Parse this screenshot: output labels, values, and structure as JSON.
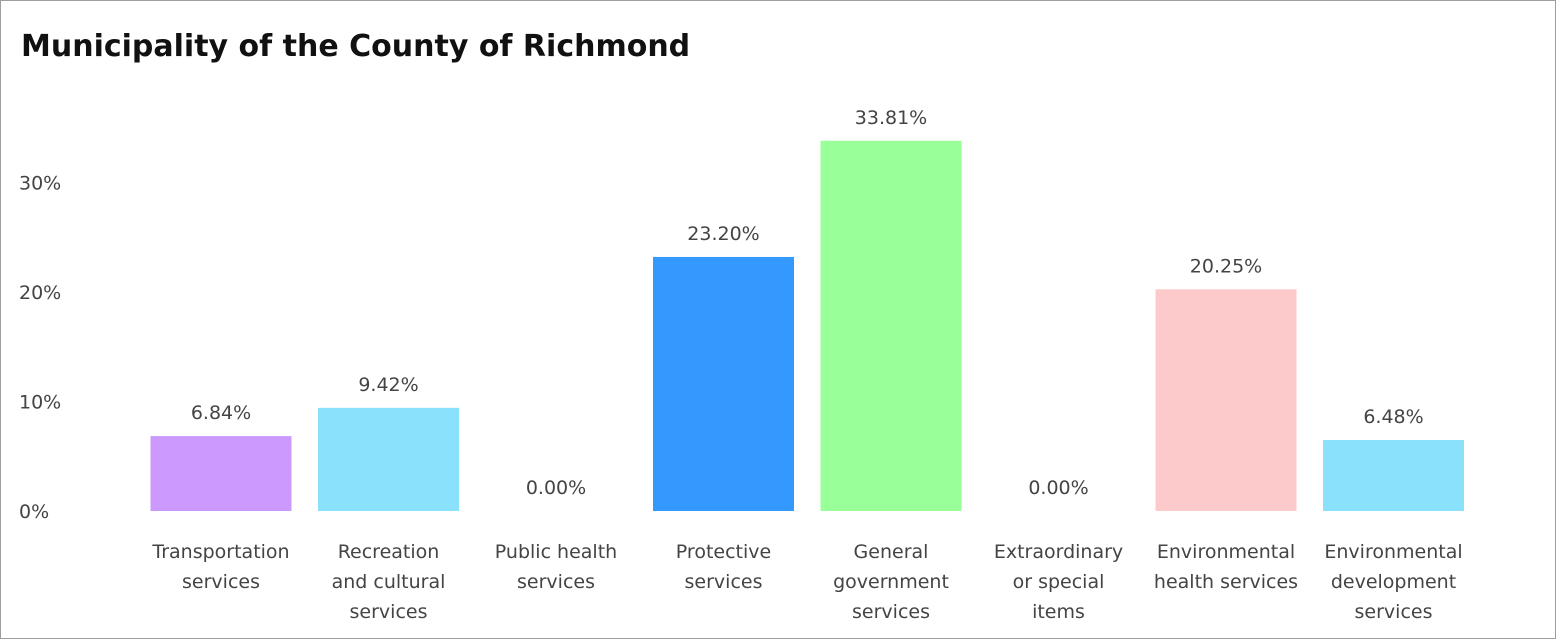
{
  "chart_data": {
    "type": "bar",
    "title": "Municipality of the County of Richmond",
    "categories": [
      [
        "Transportation",
        "services"
      ],
      [
        "Recreation",
        "and cultural",
        "services"
      ],
      [
        "Public health",
        "services"
      ],
      [
        "Protective",
        "services"
      ],
      [
        "General",
        "government",
        "services"
      ],
      [
        "Extraordinary",
        "or special",
        "items"
      ],
      [
        "Environmental",
        "health services"
      ],
      [
        "Environmental",
        "development",
        "services"
      ]
    ],
    "values": [
      6.84,
      9.42,
      0.0,
      23.2,
      33.81,
      0.0,
      20.25,
      6.48
    ],
    "data_labels": [
      "6.84%",
      "9.42%",
      "0.00%",
      "23.20%",
      "33.81%",
      "0.00%",
      "20.25%",
      "6.48%"
    ],
    "colors": [
      "#cc99ff",
      "#8ae1fb",
      "#8ae1fb",
      "#3399ff",
      "#99ff99",
      "#99ff99",
      "#fccaca",
      "#8ae1fb"
    ],
    "y_ticks": [
      {
        "value": 0,
        "label": "0%"
      },
      {
        "value": 10,
        "label": "10%"
      },
      {
        "value": 20,
        "label": "20%"
      },
      {
        "value": 30,
        "label": "30%"
      }
    ],
    "ylim": [
      0,
      35
    ],
    "xlabel": "",
    "ylabel": "",
    "grid": false,
    "legend": "none"
  }
}
